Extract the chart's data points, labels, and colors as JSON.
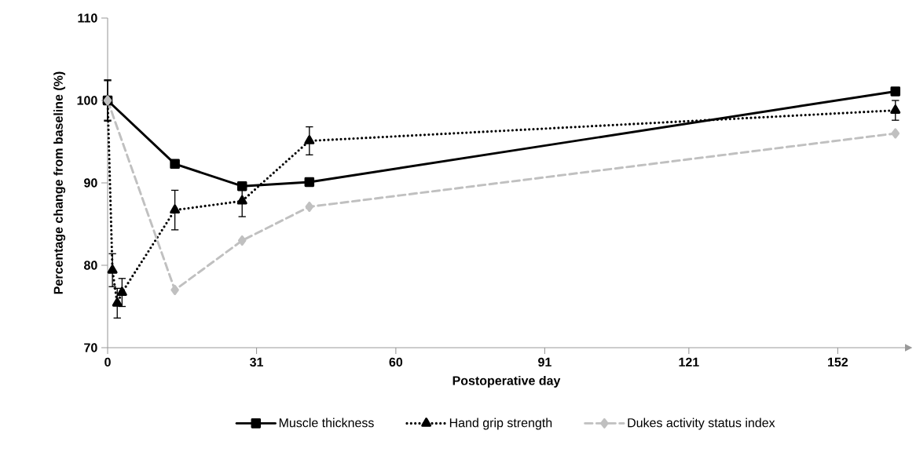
{
  "chart_data": {
    "type": "line",
    "xlabel": "Postoperative day",
    "ylabel": "Percentage change from baseline (%)",
    "xlim": [
      0,
      166
    ],
    "xticks": [
      0,
      31,
      60,
      91,
      121,
      152
    ],
    "ylim": [
      70,
      110
    ],
    "yticks": [
      70,
      80,
      90,
      100,
      110
    ],
    "grid": false,
    "legend": "bottom",
    "series": [
      {
        "name": "Muscle thickness",
        "color": "#000000",
        "marker": "square",
        "line_style": "solid",
        "x": [
          0,
          14,
          28,
          42,
          164
        ],
        "values": [
          100,
          92.3,
          89.6,
          90.1,
          101.1
        ],
        "errors": [
          2.5,
          null,
          null,
          null,
          null
        ]
      },
      {
        "name": "Hand grip strength",
        "color": "#000000",
        "marker": "triangle",
        "line_style": "dotted",
        "x": [
          0,
          1,
          2,
          3,
          14,
          28,
          42,
          164
        ],
        "values": [
          100,
          79.4,
          75.4,
          76.7,
          86.7,
          87.8,
          95.1,
          98.8
        ],
        "errors": [
          2.4,
          2,
          1.8,
          1.7,
          2.4,
          1.9,
          1.7,
          1.2
        ]
      },
      {
        "name": "Dukes activity status index",
        "color": "#c0c0c0",
        "marker": "diamond",
        "line_style": "dashed",
        "x": [
          0,
          14,
          28,
          42,
          164
        ],
        "values": [
          100,
          77,
          83,
          87.1,
          96
        ]
      }
    ]
  }
}
